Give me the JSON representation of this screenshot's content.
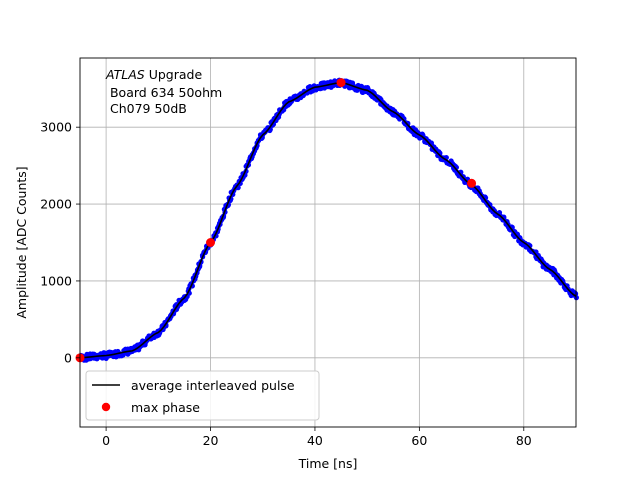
{
  "chart_data": {
    "type": "scatter",
    "title": "",
    "xlabel": "Time [ns]",
    "ylabel": "Amplitude [ADC Counts]",
    "xlim": [
      -5,
      90
    ],
    "ylim": [
      -900,
      3900
    ],
    "xticks": [
      0,
      20,
      40,
      60,
      80
    ],
    "yticks": [
      0,
      1000,
      2000,
      3000
    ],
    "grid": true,
    "legend_position": "lower-left",
    "annotation": {
      "line1_italic": "ATLAS",
      "line1_rest": " Upgrade",
      "line2": " Board 634 50ohm",
      "line3": " Ch079 50dB"
    },
    "series": [
      {
        "name": "average interleaved pulse",
        "kind": "line",
        "color": "#000000",
        "x": [
          -5,
          0,
          5,
          10,
          15,
          20,
          25,
          30,
          35,
          40,
          45,
          50,
          55,
          60,
          65,
          70,
          75,
          80,
          85,
          90
        ],
        "y": [
          0,
          30,
          90,
          330,
          780,
          1500,
          2230,
          2900,
          3330,
          3520,
          3580,
          3480,
          3200,
          2900,
          2580,
          2250,
          1870,
          1500,
          1150,
          800
        ]
      },
      {
        "name": "max phase",
        "kind": "points",
        "color": "#ff0000",
        "x": [
          -5,
          20,
          45,
          70
        ],
        "y": [
          0,
          1500,
          3580,
          2270
        ]
      }
    ],
    "samples_color": "#0000ff"
  },
  "legend": {
    "entries": [
      "average interleaved pulse",
      "max phase"
    ]
  }
}
